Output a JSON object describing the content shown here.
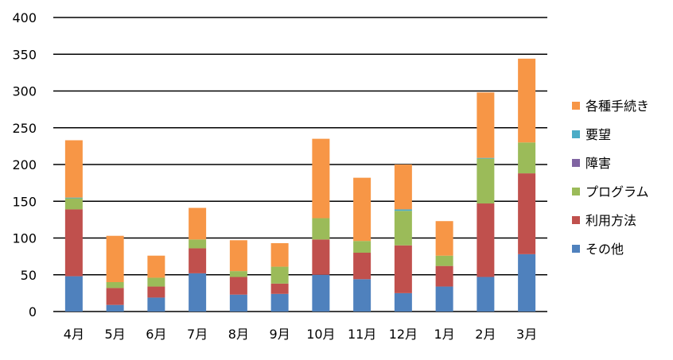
{
  "chart_data": {
    "type": "bar",
    "stacked": true,
    "categories": [
      "4月",
      "5月",
      "6月",
      "7月",
      "8月",
      "9月",
      "10月",
      "11月",
      "12月",
      "1月",
      "2月",
      "3月"
    ],
    "series": [
      {
        "name": "その他",
        "color": "#4F81BD",
        "values": [
          48,
          9,
          19,
          52,
          23,
          24,
          50,
          44,
          25,
          34,
          47,
          78
        ]
      },
      {
        "name": "利用方法",
        "color": "#C0504D",
        "values": [
          91,
          23,
          15,
          34,
          24,
          14,
          48,
          36,
          65,
          28,
          100,
          110
        ]
      },
      {
        "name": "プログラム",
        "color": "#9BBB59",
        "values": [
          15,
          8,
          12,
          12,
          8,
          23,
          29,
          16,
          47,
          14,
          61,
          42
        ]
      },
      {
        "name": "障害",
        "color": "#8064A2",
        "values": [
          0,
          0,
          0,
          0,
          0,
          0,
          0,
          0,
          0,
          0,
          0,
          0
        ]
      },
      {
        "name": "要望",
        "color": "#4BACC6",
        "values": [
          1,
          0,
          0,
          0,
          0,
          0,
          0,
          0,
          2,
          0,
          1,
          0
        ]
      },
      {
        "name": "各種手続き",
        "color": "#F79646",
        "values": [
          78,
          63,
          30,
          43,
          42,
          32,
          108,
          86,
          61,
          47,
          89,
          114
        ]
      }
    ],
    "ylim": [
      0,
      400
    ],
    "yticks": [
      0,
      50,
      100,
      150,
      200,
      250,
      300,
      350,
      400
    ],
    "grid": true,
    "legend_position": "right",
    "legend_order": [
      "各種手続き",
      "要望",
      "障害",
      "プログラム",
      "利用方法",
      "その他"
    ]
  }
}
